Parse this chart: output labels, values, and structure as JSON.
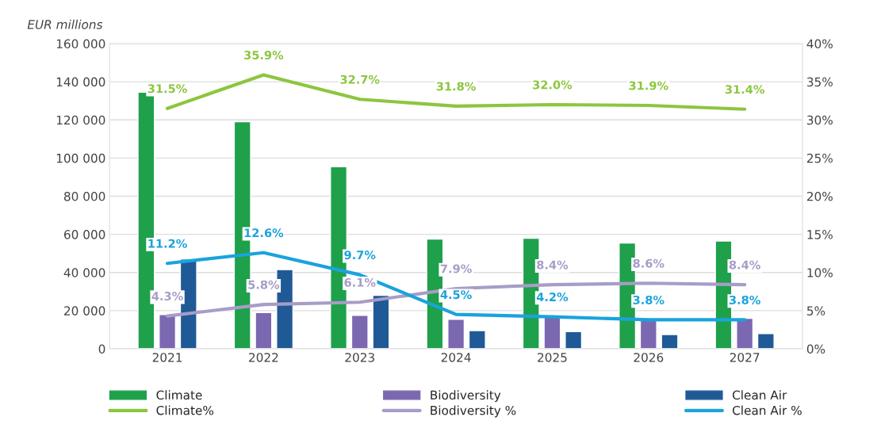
{
  "chart_data": {
    "type": "bar",
    "ylabel": "EUR millions",
    "categories": [
      "2021",
      "2022",
      "2023",
      "2024",
      "2025",
      "2026",
      "2027"
    ],
    "series": [
      {
        "name": "Climate",
        "color": "#1fa04b",
        "values": [
          134500,
          119000,
          95500,
          57500,
          58000,
          55500,
          56500
        ]
      },
      {
        "name": "Biodiversity",
        "color": "#7b68b0",
        "values": [
          18000,
          19000,
          17500,
          15500,
          16500,
          16000,
          16000
        ]
      },
      {
        "name": "Clean Air",
        "color": "#1f5a96",
        "values": [
          47000,
          41500,
          28000,
          9500,
          9000,
          7500,
          8000
        ]
      },
      {
        "name": "Climate%",
        "type": "line",
        "axis": "y2",
        "color": "#8cc63f",
        "values": [
          31.5,
          35.9,
          32.7,
          31.8,
          32.0,
          31.9,
          31.4
        ],
        "value_labels": [
          "31.5%",
          "35.9%",
          "32.7%",
          "31.8%",
          "32.0%",
          "31.9%",
          "31.4%"
        ]
      },
      {
        "name": "Biodiversity %",
        "type": "line",
        "axis": "y2",
        "color": "#a89cc8",
        "values": [
          4.3,
          5.8,
          6.1,
          7.9,
          8.4,
          8.6,
          8.4
        ],
        "value_labels": [
          "4.3%",
          "5.8%",
          "6.1%",
          "7.9%",
          "8.4%",
          "8.6%",
          "8.4%"
        ]
      },
      {
        "name": "Clean Air %",
        "type": "line",
        "axis": "y2",
        "color": "#1aa3dc",
        "values": [
          11.2,
          12.6,
          9.7,
          4.5,
          4.2,
          3.8,
          3.8
        ],
        "value_labels": [
          "11.2%",
          "12.6%",
          "9.7%",
          "4.5%",
          "4.2%",
          "3.8%",
          "3.8%"
        ]
      }
    ],
    "ylim": [
      0,
      160000
    ],
    "yticks": [
      {
        "value": 0,
        "label": "0"
      },
      {
        "value": 20000,
        "label": "20 000"
      },
      {
        "value": 40000,
        "label": "40 000"
      },
      {
        "value": 60000,
        "label": "60 000"
      },
      {
        "value": 80000,
        "label": "80 000"
      },
      {
        "value": 100000,
        "label": "100 000"
      },
      {
        "value": 120000,
        "label": "120 000"
      },
      {
        "value": 140000,
        "label": "140 000"
      },
      {
        "value": 160000,
        "label": "160 000"
      }
    ],
    "y2lim": [
      0,
      40
    ],
    "y2ticks": [
      {
        "value": 0,
        "label": "0%"
      },
      {
        "value": 5,
        "label": "5%"
      },
      {
        "value": 10,
        "label": "10%"
      },
      {
        "value": 15,
        "label": "15%"
      },
      {
        "value": 20,
        "label": "20%"
      },
      {
        "value": 25,
        "label": "25%"
      },
      {
        "value": 30,
        "label": "30%"
      },
      {
        "value": 35,
        "label": "35%"
      },
      {
        "value": 40,
        "label": "40%"
      }
    ],
    "grid": "y",
    "legend": "bottom",
    "marker": "none",
    "line_style": "solid"
  }
}
